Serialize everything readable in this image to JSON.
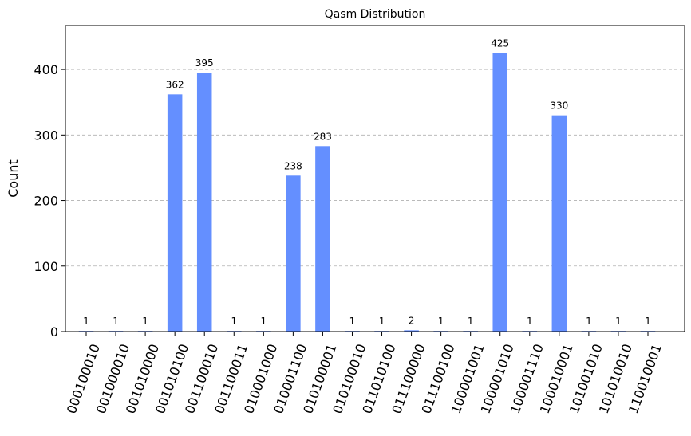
{
  "chart_data": {
    "type": "bar",
    "title": "Qasm Distribution",
    "xlabel": "",
    "ylabel": "Count",
    "ylim": [
      0,
      467
    ],
    "yticks": [
      0,
      100,
      200,
      300,
      400
    ],
    "grid": true,
    "bar_color": "#648fff",
    "categories": [
      "000100010",
      "001000010",
      "001010000",
      "001010100",
      "001100010",
      "001100011",
      "010001000",
      "010001100",
      "010100001",
      "010100010",
      "011010100",
      "011100000",
      "011100100",
      "100001001",
      "100001010",
      "100001110",
      "100010001",
      "101001010",
      "101010010",
      "110010001"
    ],
    "values": [
      1,
      1,
      1,
      362,
      395,
      1,
      1,
      238,
      283,
      1,
      1,
      2,
      1,
      1,
      425,
      1,
      330,
      1,
      1,
      1
    ]
  }
}
